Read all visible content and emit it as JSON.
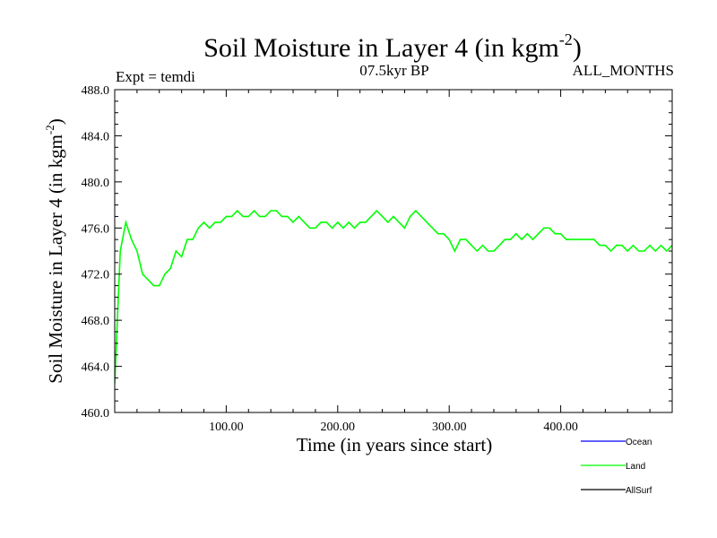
{
  "chart_data": {
    "type": "line",
    "title_main": "Soil Moisture in Layer 4 (in kgm",
    "title_sup": "-2",
    "title_close": ")",
    "subtitle_left": "Expt = temdi",
    "subtitle_center": "07.5kyr BP",
    "subtitle_right": "ALL_MONTHS",
    "xlabel": "Time (in years since start)",
    "ylabel_main": "Soil Moisture in Layer 4 (in kgm",
    "ylabel_sup": "-2",
    "ylabel_close": ")",
    "xlim": [
      0,
      500
    ],
    "ylim": [
      460,
      488
    ],
    "x_ticks": [
      100,
      200,
      300,
      400
    ],
    "x_tick_labels": [
      "100.00",
      "200.00",
      "300.00",
      "400.00"
    ],
    "y_ticks": [
      460,
      464,
      468,
      472,
      476,
      480,
      484,
      488
    ],
    "y_tick_labels": [
      "460.0",
      "464.0",
      "468.0",
      "472.0",
      "476.0",
      "480.0",
      "484.0",
      "488.0"
    ],
    "legend_position": "bottom-right",
    "series": [
      {
        "name": "Ocean",
        "color": "#0000ff",
        "values": []
      },
      {
        "name": "Land",
        "color": "#00ff00",
        "x_start": 0,
        "x_step": 5,
        "values": [
          462.5,
          474.0,
          476.5,
          475.0,
          474.0,
          472.0,
          471.5,
          471.0,
          471.0,
          472.0,
          472.5,
          474.0,
          473.5,
          475.0,
          475.0,
          476.0,
          476.5,
          476.0,
          476.5,
          476.5,
          477.0,
          477.0,
          477.5,
          477.0,
          477.0,
          477.5,
          477.0,
          477.0,
          477.5,
          477.5,
          477.0,
          477.0,
          476.5,
          477.0,
          476.5,
          476.0,
          476.0,
          476.5,
          476.5,
          476.0,
          476.5,
          476.0,
          476.5,
          476.0,
          476.5,
          476.5,
          477.0,
          477.5,
          477.0,
          476.5,
          477.0,
          476.5,
          476.0,
          477.0,
          477.5,
          477.0,
          476.5,
          476.0,
          475.5,
          475.5,
          475.0,
          474.0,
          475.0,
          475.0,
          474.5,
          474.0,
          474.5,
          474.0,
          474.0,
          474.5,
          475.0,
          475.0,
          475.5,
          475.0,
          475.5,
          475.0,
          475.5,
          476.0,
          476.0,
          475.5,
          475.5,
          475.0,
          475.0,
          475.0,
          475.0,
          475.0,
          475.0,
          474.5,
          474.5,
          474.0,
          474.5,
          474.5,
          474.0,
          474.5,
          474.0,
          474.0,
          474.5,
          474.0,
          474.5,
          474.0,
          474.5
        ]
      },
      {
        "name": "AllSurf",
        "color": "#000000",
        "values": []
      }
    ]
  }
}
